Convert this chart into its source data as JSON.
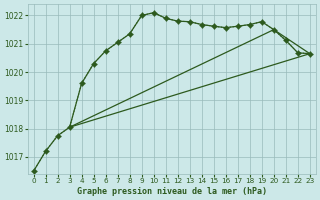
{
  "background_color": "#cce8e8",
  "grid_color": "#99bbbb",
  "line_color": "#2d5a1e",
  "title": "Graphe pression niveau de la mer (hPa)",
  "xlim": [
    -0.5,
    23.5
  ],
  "ylim": [
    1016.4,
    1022.4
  ],
  "yticks": [
    1017,
    1018,
    1019,
    1020,
    1021,
    1022
  ],
  "xticks": [
    0,
    1,
    2,
    3,
    4,
    5,
    6,
    7,
    8,
    9,
    10,
    11,
    12,
    13,
    14,
    15,
    16,
    17,
    18,
    19,
    20,
    21,
    22,
    23
  ],
  "series": [
    {
      "x": [
        0,
        1,
        2,
        3,
        4,
        5,
        6,
        7,
        8,
        9,
        10,
        11,
        12,
        13,
        14,
        15,
        16,
        17,
        18,
        19,
        20,
        21,
        22,
        23
      ],
      "y": [
        1016.5,
        1017.2,
        1017.75,
        1018.05,
        1019.6,
        1020.3,
        1020.75,
        1021.05,
        1021.35,
        1022.0,
        1022.1,
        1021.9,
        1021.8,
        1021.78,
        1021.68,
        1021.62,
        1021.57,
        1021.62,
        1021.68,
        1021.78,
        1021.5,
        1021.12,
        1020.68,
        1020.65
      ],
      "linestyle": "dotted",
      "marker": "D",
      "markersize": 2.2,
      "linewidth": 0.8
    },
    {
      "x": [
        0,
        1,
        2,
        3,
        4,
        5,
        6,
        7,
        8,
        9,
        10,
        11,
        12,
        13,
        14,
        15,
        16,
        17,
        18,
        19,
        20,
        21,
        22,
        23
      ],
      "y": [
        1016.5,
        1017.2,
        1017.75,
        1018.05,
        1019.6,
        1020.3,
        1020.75,
        1021.05,
        1021.35,
        1022.0,
        1022.1,
        1021.9,
        1021.8,
        1021.78,
        1021.68,
        1021.62,
        1021.57,
        1021.62,
        1021.68,
        1021.78,
        1021.5,
        1021.12,
        1020.68,
        1020.65
      ],
      "linestyle": "solid",
      "marker": "+",
      "markersize": 4,
      "linewidth": 0.9
    },
    {
      "x": [
        3,
        23
      ],
      "y": [
        1018.05,
        1020.65
      ],
      "linestyle": "solid",
      "marker": null,
      "markersize": 0,
      "linewidth": 0.9
    },
    {
      "x": [
        3,
        20,
        23
      ],
      "y": [
        1018.05,
        1021.5,
        1020.65
      ],
      "linestyle": "solid",
      "marker": null,
      "markersize": 0,
      "linewidth": 0.9
    }
  ]
}
